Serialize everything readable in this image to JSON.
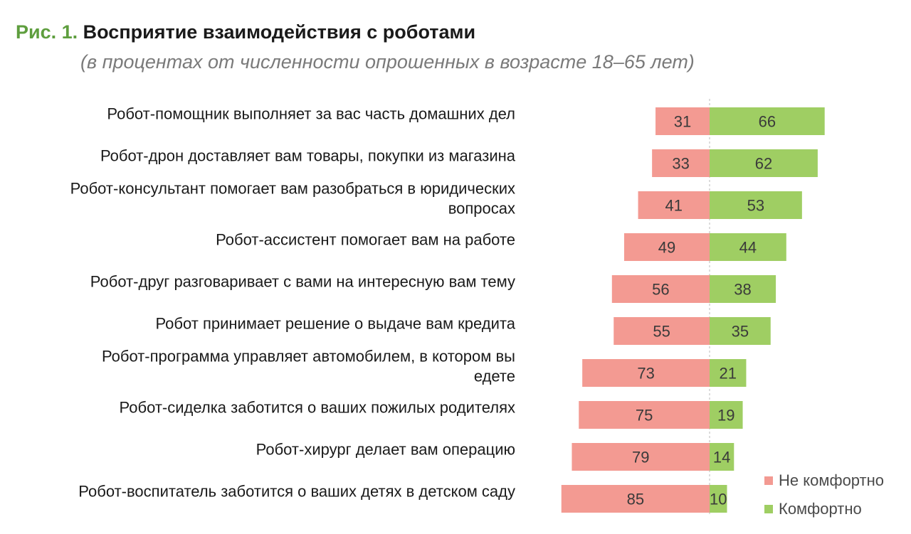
{
  "header": {
    "fig_label": "Рис. 1.",
    "title": "Восприятие взаимодействия с роботами",
    "subtitle": "(в процентах от численности опрошенных в возрасте 18–65 лет)"
  },
  "colors": {
    "not_comfortable": "#f39a92",
    "comfortable": "#9fce63",
    "fig_label": "#5e9e3e"
  },
  "chart_data": {
    "type": "bar",
    "orientation": "horizontal-diverging",
    "categories": [
      [
        "Робот-помощник выполняет за вас часть домашних дел"
      ],
      [
        "Робот-дрон доставляет вам товары, покупки из магазина"
      ],
      [
        "Робот-консультант помогает вам разобраться в юридических",
        "вопросах"
      ],
      [
        "Робот-ассистент помогает вам на работе"
      ],
      [
        "Робот-друг разговаривает с вами на интересную вам тему"
      ],
      [
        "Робот принимает решение о выдаче вам кредита"
      ],
      [
        "Робот-программа управляет автомобилем, в котором вы",
        "едете"
      ],
      [
        "Робот-сиделка заботится о ваших пожилых родителях"
      ],
      [
        "Робот-хирург делает вам операцию"
      ],
      [
        "Робот-воспитатель заботится о ваших детях в детском саду"
      ]
    ],
    "series": [
      {
        "name": "Не комфортно",
        "values": [
          31,
          33,
          41,
          49,
          56,
          55,
          73,
          75,
          79,
          85
        ]
      },
      {
        "name": "Комфортно",
        "values": [
          66,
          62,
          53,
          44,
          38,
          35,
          21,
          19,
          14,
          10
        ]
      }
    ],
    "legend_position": "bottom-right",
    "grid": false
  }
}
